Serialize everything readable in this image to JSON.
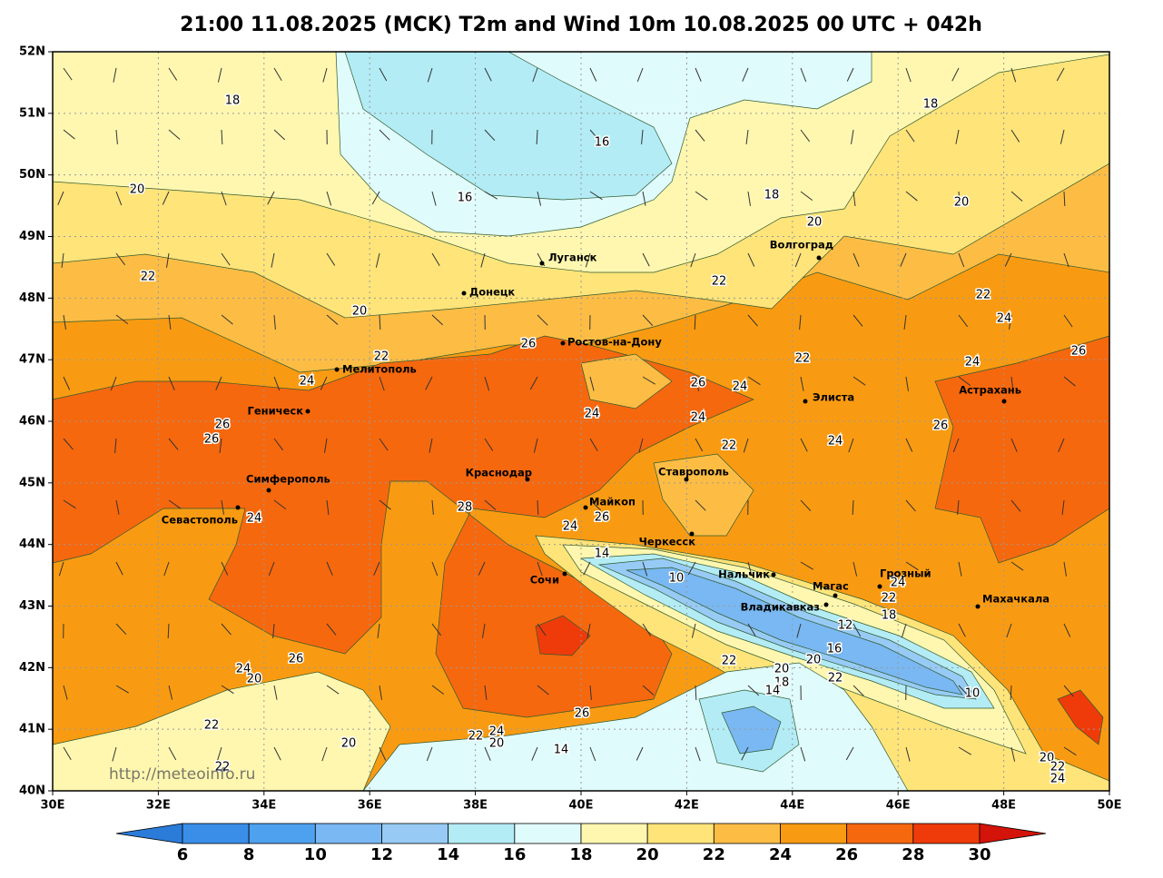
{
  "header": {
    "title": "21:00 11.08.2025 (MCK) T2m and Wind 10m 10.08.2025 00 UTC + 042h"
  },
  "map": {
    "lon_ticks": [
      {
        "value": 30,
        "label": "30E"
      },
      {
        "value": 32,
        "label": "32E"
      },
      {
        "value": 34,
        "label": "34E"
      },
      {
        "value": 36,
        "label": "36E"
      },
      {
        "value": 38,
        "label": "38E"
      },
      {
        "value": 40,
        "label": "40E"
      },
      {
        "value": 42,
        "label": "42E"
      },
      {
        "value": 44,
        "label": "44E"
      },
      {
        "value": 46,
        "label": "46E"
      },
      {
        "value": 48,
        "label": "48E"
      },
      {
        "value": 50,
        "label": "50E"
      }
    ],
    "lat_ticks": [
      {
        "value": 40,
        "label": "40N"
      },
      {
        "value": 41,
        "label": "41N"
      },
      {
        "value": 42,
        "label": "42N"
      },
      {
        "value": 43,
        "label": "43N"
      },
      {
        "value": 44,
        "label": "44N"
      },
      {
        "value": 45,
        "label": "45N"
      },
      {
        "value": 46,
        "label": "46N"
      },
      {
        "value": 47,
        "label": "47N"
      },
      {
        "value": 48,
        "label": "48N"
      },
      {
        "value": 49,
        "label": "49N"
      },
      {
        "value": 50,
        "label": "50N"
      },
      {
        "value": 51,
        "label": "51N"
      },
      {
        "value": 52,
        "label": "52N"
      }
    ],
    "cities": [
      "Луганск",
      "Донецк",
      "Ростов-на-Дону",
      "Мелитополь",
      "Геническ",
      "Симферополь",
      "Севастополь",
      "Краснодар",
      "Майкоп",
      "Сочи",
      "Ставрополь",
      "Черкесск",
      "Нальчик",
      "Владикавказ",
      "Магас",
      "Грозный",
      "Махачкала",
      "Элиста",
      "Астрахань",
      "Волгоград"
    ],
    "contour_labels": [
      18,
      18,
      16,
      16,
      20,
      18,
      20,
      20,
      22,
      22,
      22,
      20,
      24,
      22,
      22,
      24,
      26,
      26,
      24,
      26,
      24,
      24,
      24,
      26,
      26,
      26,
      24,
      22,
      28,
      24,
      26,
      24,
      14,
      10,
      24,
      22,
      18,
      12,
      16,
      22,
      26,
      24,
      20,
      20,
      20,
      18,
      22,
      14,
      10,
      26,
      22,
      24,
      22,
      20,
      20,
      14,
      22,
      20,
      22,
      24
    ],
    "watermark": "http://meteoinfo.ru"
  },
  "colorbar": {
    "ticks": [
      6,
      8,
      10,
      12,
      14,
      16,
      18,
      20,
      22,
      24,
      26,
      28,
      30
    ],
    "colors": [
      "#2b7bd8",
      "#3a8ee8",
      "#4ea1ee",
      "#79b8f2",
      "#97cbf5",
      "#b3ecf5",
      "#e0fbfb",
      "#fff7b0",
      "#ffe47a",
      "#fdbd45",
      "#f99b12",
      "#f6680e",
      "#ef3b0a",
      "#d4140a"
    ]
  }
}
